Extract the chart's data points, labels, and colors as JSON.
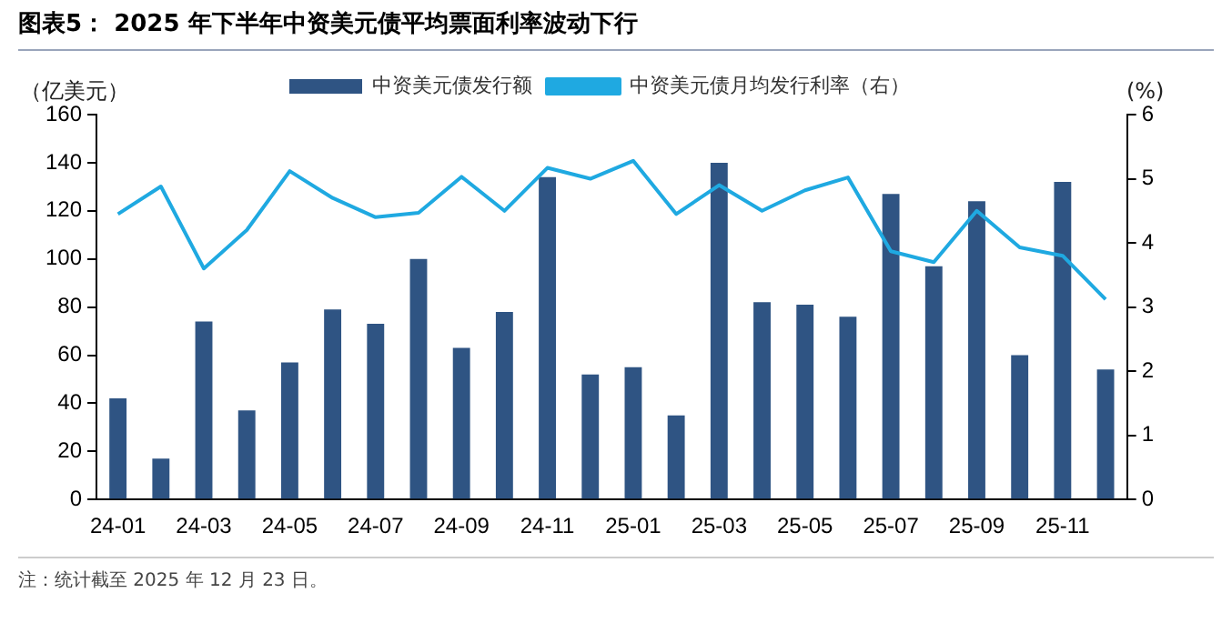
{
  "chart_data": {
    "type": "bar",
    "title": "图表5：  2025 年下半年中资美元债平均票面利率波动下行",
    "ylabel": "（亿美元）",
    "y2label": "(%)",
    "categories": [
      "24-01",
      null,
      "24-03",
      null,
      "24-05",
      null,
      "24-07",
      null,
      "24-09",
      null,
      "24-11",
      null,
      "25-01",
      null,
      "25-03",
      null,
      "25-05",
      null,
      "25-07",
      null,
      "25-09",
      null,
      "25-11",
      null
    ],
    "series": [
      {
        "name": "中资美元债发行额",
        "color": "#2f5483",
        "values": [
          42,
          17,
          74,
          37,
          57,
          79,
          73,
          100,
          63,
          78,
          134,
          52,
          55,
          35,
          140,
          82,
          81,
          76,
          127,
          97,
          124,
          60,
          132,
          54
        ]
      },
      {
        "name": "中资美元债月均发行利率（右）",
        "type": "line",
        "axis": "y2",
        "color": "#1fa9e1",
        "values": [
          4.45,
          4.88,
          3.6,
          4.2,
          5.12,
          4.7,
          4.4,
          4.47,
          5.03,
          4.5,
          5.17,
          5.0,
          5.28,
          4.45,
          4.9,
          4.5,
          4.82,
          5.02,
          3.87,
          3.7,
          4.5,
          3.93,
          3.8,
          3.12
        ]
      }
    ],
    "ylim": [
      0,
      160
    ],
    "yticks": [
      0,
      20,
      40,
      60,
      80,
      100,
      120,
      140,
      160
    ],
    "y2lim": [
      0,
      6
    ],
    "y2ticks": [
      0,
      1,
      2,
      3,
      4,
      5,
      6
    ],
    "grid": false,
    "legend": "top",
    "marker": "none",
    "annotations": [
      "注：统计截至 2025 年 12 月 23 日。"
    ]
  }
}
